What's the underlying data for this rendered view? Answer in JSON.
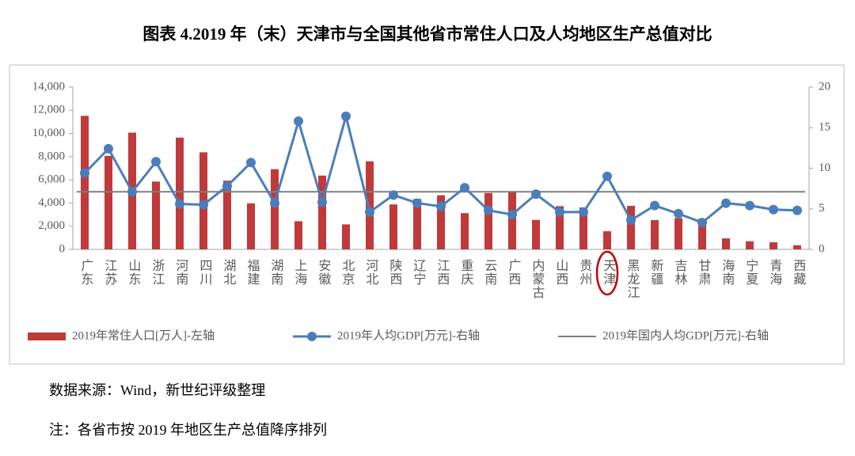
{
  "chart_data": {
    "type": "bar_line",
    "title": "图表 4.2019 年（末）天津市与全国其他省市常住人口及人均地区生产总值对比",
    "source": "数据来源：Wind，新世纪评级整理",
    "note": "注：各省市按 2019 年地区生产总值降序排列",
    "categories": [
      "广东",
      "江苏",
      "山东",
      "浙江",
      "河南",
      "四川",
      "湖北",
      "福建",
      "湖南",
      "上海",
      "安徽",
      "北京",
      "河北",
      "陕西",
      "辽宁",
      "江西",
      "重庆",
      "云南",
      "广西",
      "内蒙古",
      "山西",
      "贵州",
      "天津",
      "黑龙江",
      "新疆",
      "吉林",
      "甘肃",
      "海南",
      "宁夏",
      "青海",
      "西藏"
    ],
    "series": [
      {
        "name": "2019年常住人口[万人]-左轴",
        "color": "#c0393b",
        "kind": "bar",
        "values": [
          11521,
          8070,
          10070,
          5850,
          9640,
          8375,
          5927,
          3973,
          6918,
          2428,
          6366,
          2154,
          7592,
          3876,
          4352,
          4666,
          3124,
          4858,
          4960,
          2540,
          3729,
          3623,
          1562,
          3751,
          2523,
          2691,
          2647,
          945,
          695,
          608,
          351
        ]
      },
      {
        "name": "2019年人均GDP[万元]-右轴",
        "color": "#4a7ebb",
        "kind": "line",
        "axis": "y2",
        "values": [
          9.4,
          12.4,
          7.1,
          10.8,
          5.6,
          5.5,
          7.8,
          10.7,
          5.7,
          15.8,
          5.8,
          16.4,
          4.6,
          6.7,
          5.7,
          5.3,
          7.6,
          4.8,
          4.3,
          6.8,
          4.6,
          4.6,
          9.0,
          3.6,
          5.4,
          4.4,
          3.3,
          5.7,
          5.4,
          4.9,
          4.8
        ]
      }
    ],
    "reference_lines": [
      {
        "name": "2019年国内人均GDP[万元]-右轴",
        "color": "#7f7f7f",
        "value": 7.1,
        "axis": "y2"
      }
    ],
    "ylim": [
      0,
      14000
    ],
    "yticks": [
      0,
      {
        "value": 2000,
        "label": "2,000"
      },
      {
        "value": 4000,
        "label": "4,000"
      },
      {
        "value": 6000,
        "label": "6,000"
      },
      {
        "value": 8000,
        "label": "8,000"
      },
      {
        "value": 10000,
        "label": "10,000"
      },
      {
        "value": 12000,
        "label": "12,000"
      },
      {
        "value": 14000,
        "label": "14,000"
      }
    ],
    "y2lim": [
      0,
      20
    ],
    "y2ticks": [
      0,
      5,
      10,
      15,
      20
    ],
    "grid": false,
    "legend": "bottom"
  }
}
